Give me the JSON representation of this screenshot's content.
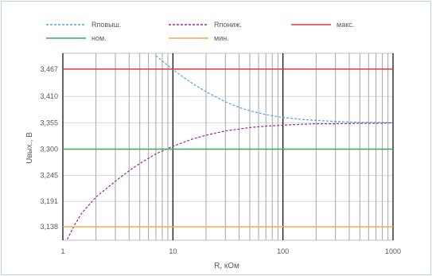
{
  "chart_data": {
    "type": "line",
    "x_scale": "log",
    "xlim": [
      1,
      1000
    ],
    "ylim": [
      3.11,
      3.5
    ],
    "xlabel": "R, кОм",
    "ylabel": "Uвых., В",
    "x_ticks": [
      1,
      10,
      100,
      1000
    ],
    "x_tick_labels": [
      "1",
      "10",
      "100",
      "1000"
    ],
    "y_ticks": [
      3.138,
      3.191,
      3.245,
      3.3,
      3.355,
      3.41,
      3.467
    ],
    "y_tick_labels": [
      "3,138",
      "3,191",
      "3,245",
      "3,300",
      "3,355",
      "3,410",
      "3,467"
    ],
    "grid": {
      "vertical_minor": true,
      "vertical_major": true,
      "horizontal": true
    },
    "legend_position": "top",
    "series": [
      {
        "name": "Rповыш.",
        "color": "#4aa8d8",
        "style": "dashed",
        "x": [
          7,
          8,
          10,
          13,
          16,
          20,
          25,
          30,
          40,
          50,
          70,
          100,
          150,
          200,
          300,
          500,
          700,
          1000
        ],
        "y": [
          3.495,
          3.484,
          3.466,
          3.447,
          3.433,
          3.42,
          3.408,
          3.399,
          3.387,
          3.38,
          3.372,
          3.366,
          3.362,
          3.36,
          3.358,
          3.356,
          3.356,
          3.355
        ]
      },
      {
        "name": "Rпониж.",
        "color": "#9b2a9b",
        "style": "dashed",
        "x": [
          1.1,
          1.3,
          1.5,
          2,
          3,
          4,
          5,
          7,
          10,
          15,
          20,
          30,
          50,
          70,
          100,
          150,
          200,
          300,
          500,
          700,
          1000
        ],
        "y": [
          3.112,
          3.145,
          3.168,
          3.2,
          3.233,
          3.255,
          3.27,
          3.29,
          3.306,
          3.321,
          3.329,
          3.338,
          3.345,
          3.348,
          3.35,
          3.352,
          3.353,
          3.353,
          3.354,
          3.354,
          3.355
        ]
      },
      {
        "name": "макс.",
        "color": "#e03a3a",
        "style": "solid",
        "x": [
          1,
          1000
        ],
        "y": [
          3.467,
          3.467
        ]
      },
      {
        "name": "ном.",
        "color": "#3aaa5a",
        "style": "solid",
        "x": [
          1,
          1000
        ],
        "y": [
          3.3,
          3.3
        ]
      },
      {
        "name": "мин.",
        "color": "#f5a94a",
        "style": "solid",
        "x": [
          1,
          1000
        ],
        "y": [
          3.138,
          3.138
        ]
      }
    ]
  }
}
